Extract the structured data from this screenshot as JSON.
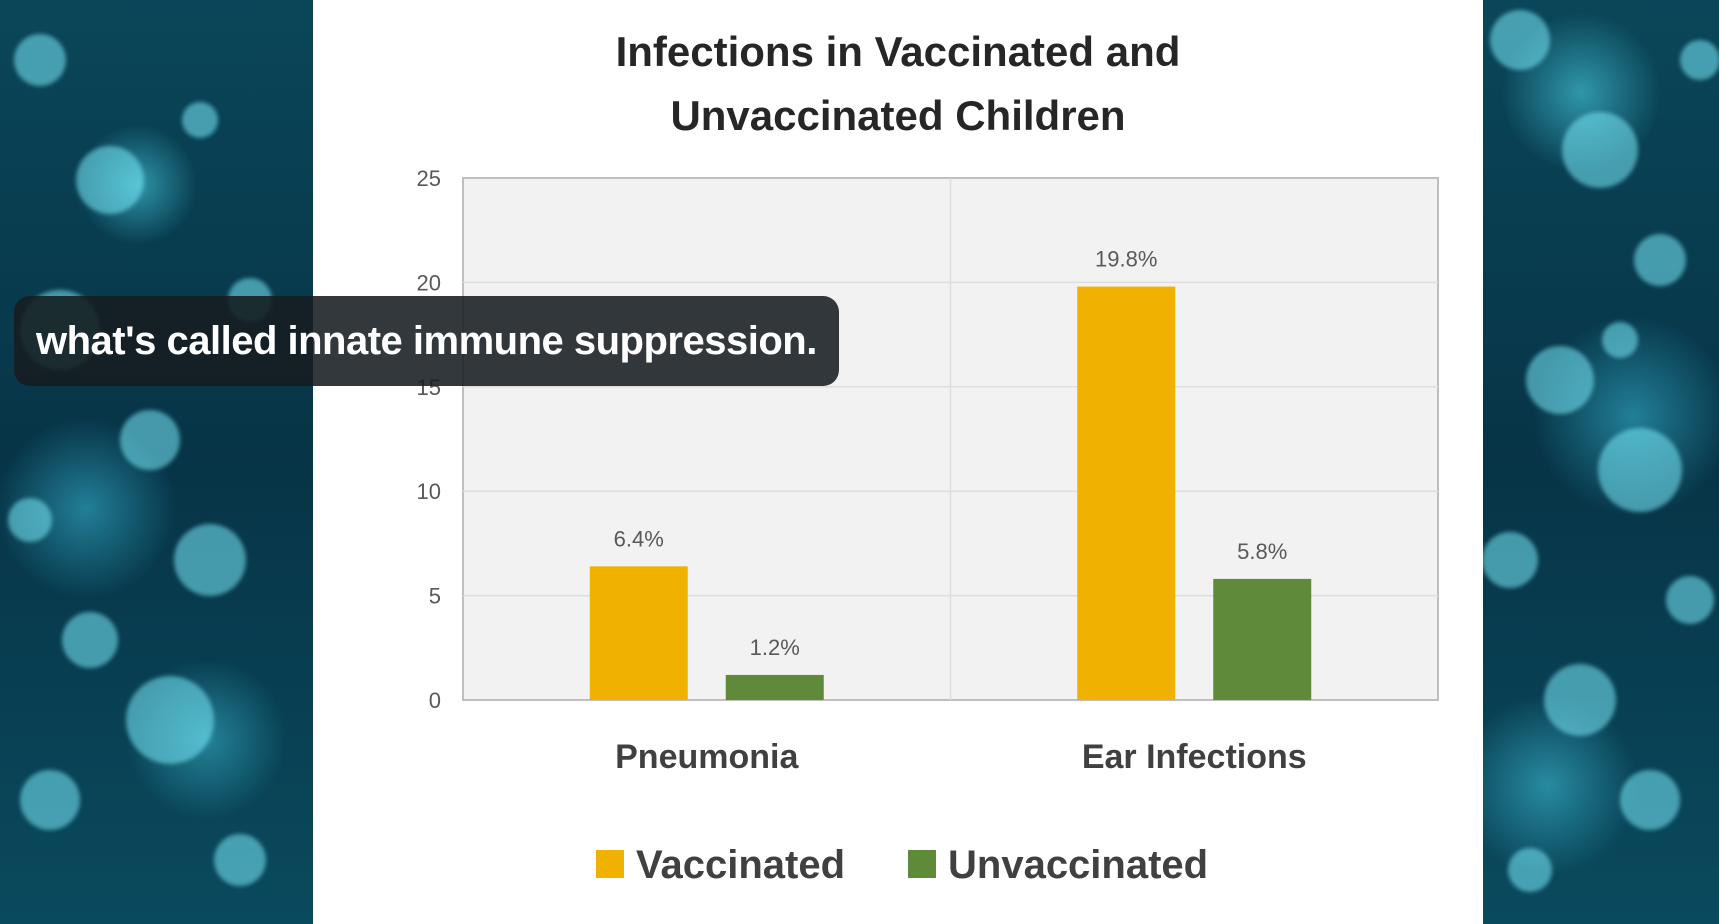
{
  "caption": "what's called innate immune suppression.",
  "chart_data": {
    "type": "bar",
    "title_lines": [
      "Infections in Vaccinated and",
      "Unvaccinated Children"
    ],
    "categories": [
      "Pneumonia",
      "Ear Infections"
    ],
    "series": [
      {
        "name": "Vaccinated",
        "values": [
          6.4,
          19.8
        ],
        "labels": [
          "6.4%",
          "19.8%"
        ],
        "color": "#f0b100"
      },
      {
        "name": "Unvaccinated",
        "values": [
          1.2,
          5.8
        ],
        "labels": [
          "1.2%",
          "5.8%"
        ],
        "color": "#5e8a3a"
      }
    ],
    "y_ticks": [
      "0",
      "5",
      "10",
      "15",
      "20",
      "25"
    ],
    "ylim": [
      0,
      25
    ],
    "grid": true,
    "legend_position": "bottom"
  }
}
